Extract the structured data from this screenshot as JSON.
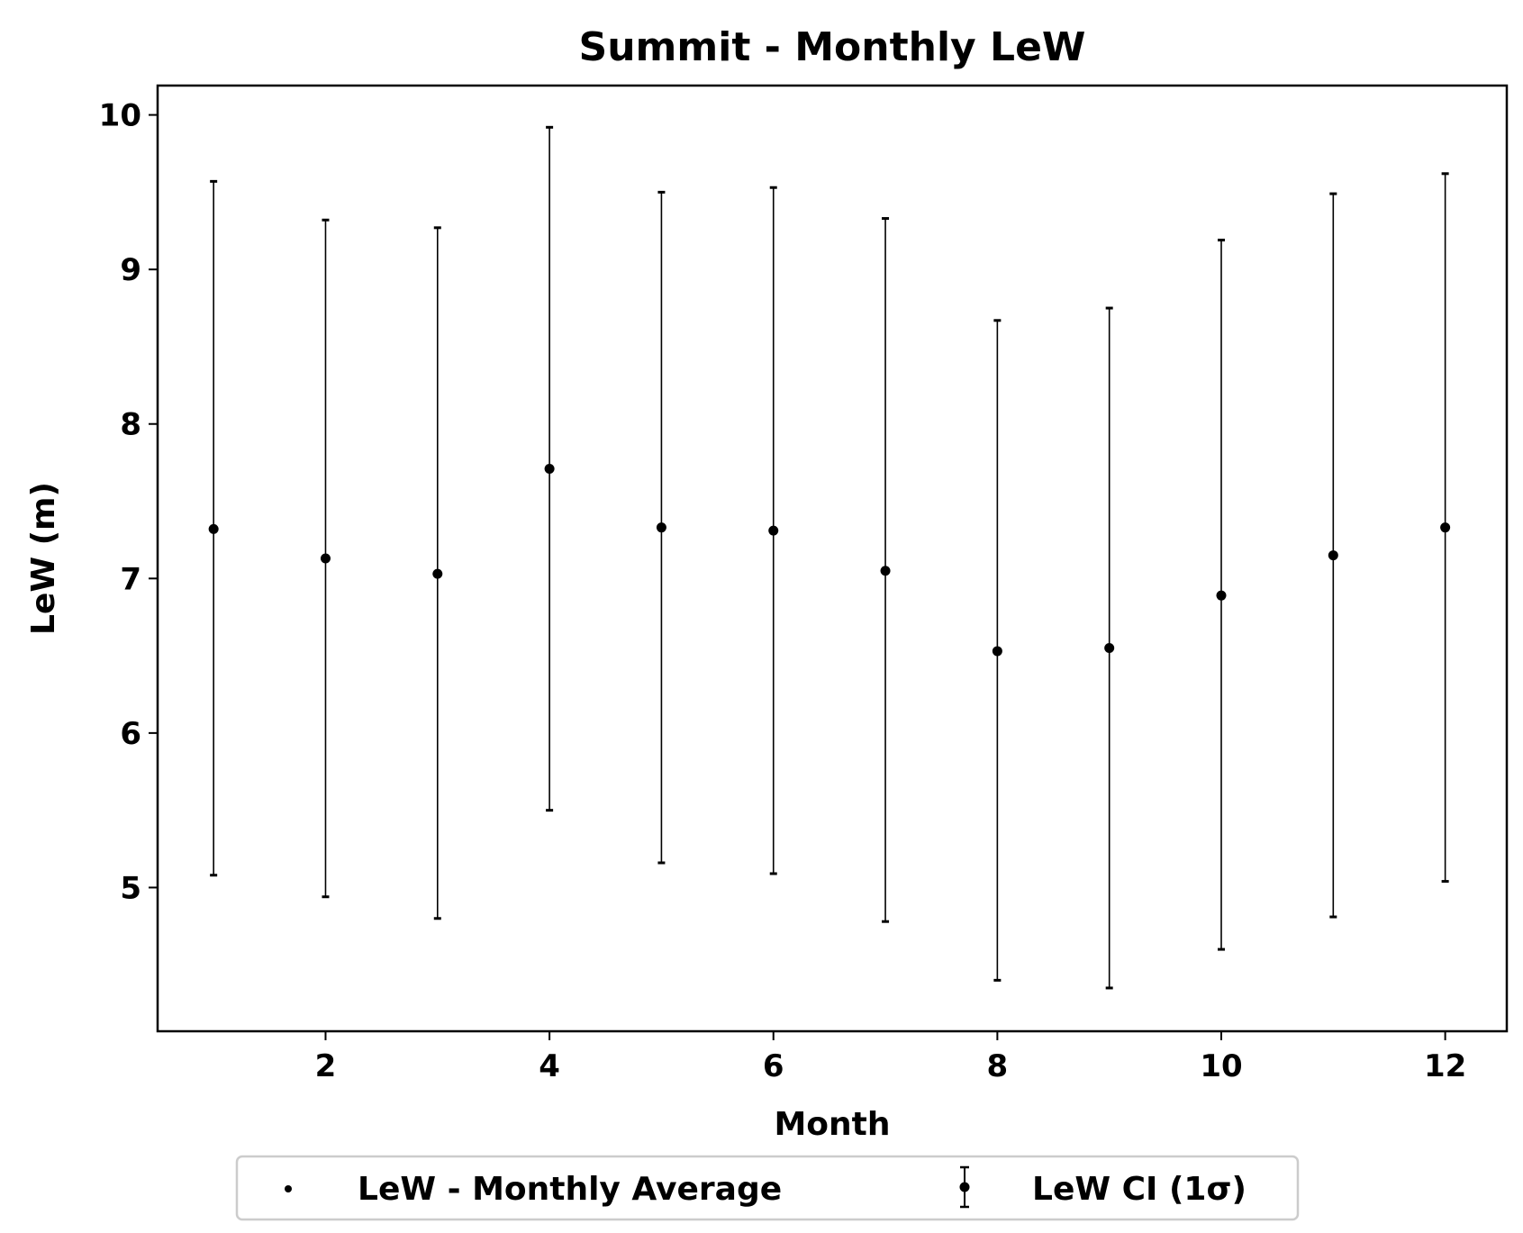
{
  "chart_data": {
    "type": "scatter",
    "title": "Summit - Monthly LeW",
    "xlabel": "Month",
    "ylabel": "LeW (m)",
    "xlim": [
      0.5,
      12.55
    ],
    "ylim": [
      4.07,
      10.19
    ],
    "xticks": [
      2,
      4,
      6,
      8,
      10,
      12
    ],
    "yticks": [
      5,
      6,
      7,
      8,
      9,
      10
    ],
    "grid": false,
    "legend_position": "bottom-center",
    "colors": {
      "marker": "#000000",
      "axes": "#000000"
    },
    "series": [
      {
        "name": "LeW - Monthly Average",
        "x": [
          1,
          2,
          3,
          4,
          5,
          6,
          7,
          8,
          9,
          10,
          11,
          12
        ],
        "y": [
          7.32,
          7.13,
          7.03,
          7.71,
          7.33,
          7.31,
          7.05,
          6.53,
          6.55,
          6.89,
          7.15,
          7.33
        ]
      },
      {
        "name": "LeW CI (1σ)",
        "x": [
          1,
          2,
          3,
          4,
          5,
          6,
          7,
          8,
          9,
          10,
          11,
          12
        ],
        "lower": [
          5.08,
          4.94,
          4.8,
          5.5,
          5.16,
          5.09,
          4.78,
          4.4,
          4.35,
          4.6,
          4.81,
          5.04
        ],
        "upper": [
          9.57,
          9.32,
          9.27,
          9.92,
          9.5,
          9.53,
          9.33,
          8.67,
          8.75,
          9.19,
          9.49,
          9.62
        ]
      }
    ]
  }
}
